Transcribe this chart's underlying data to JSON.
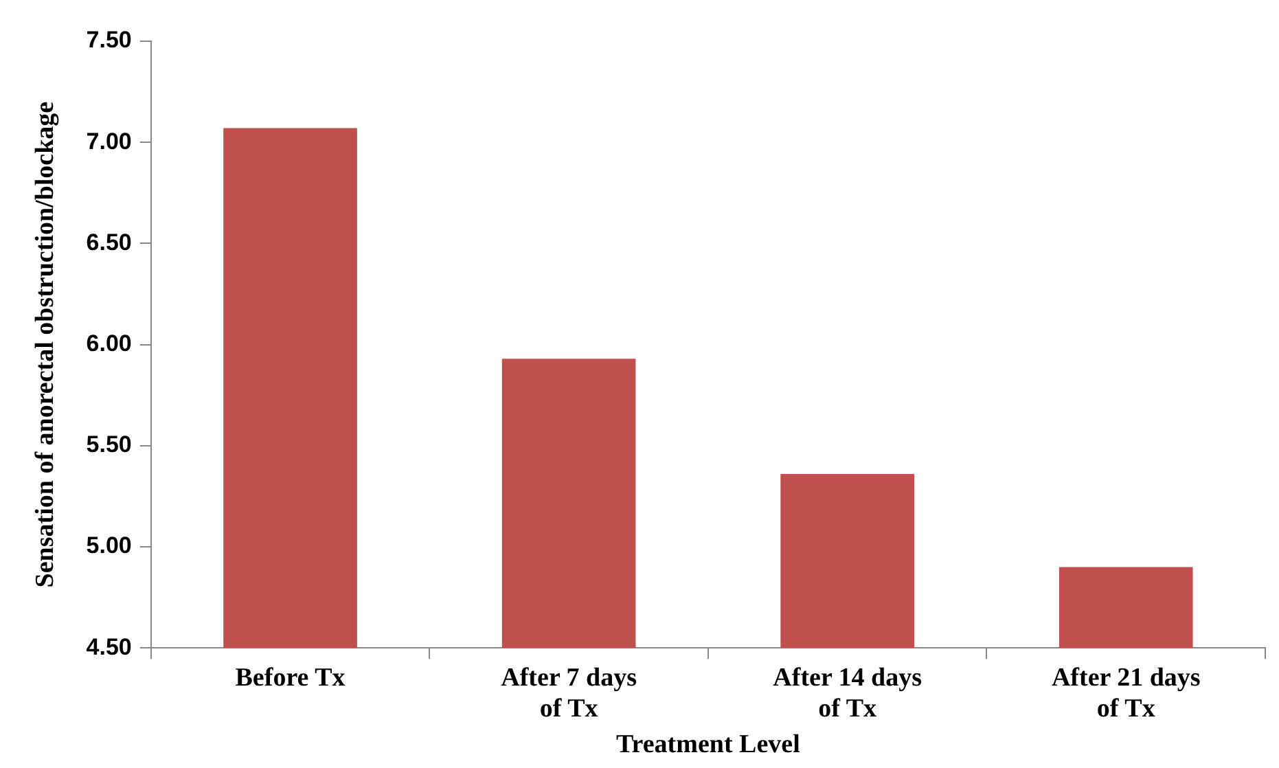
{
  "chart_data": {
    "type": "bar",
    "xlabel": "Treatment Level",
    "ylabel": "Sensation of anorectal obstruction/blockage",
    "categories": [
      "Before Tx",
      "After 7 days of Tx",
      "After 14 days of Tx",
      "After 21 days of Tx"
    ],
    "values": [
      7.07,
      5.93,
      5.36,
      4.9
    ],
    "color": "#c0504d",
    "ylim": [
      4.5,
      7.5
    ],
    "yticks": [
      {
        "value": 4.5,
        "label": "4.50"
      },
      {
        "value": 5,
        "label": "5.00"
      },
      {
        "value": 5.5,
        "label": "5.50"
      },
      {
        "value": 6,
        "label": "6.00"
      },
      {
        "value": 6.5,
        "label": "6.50"
      },
      {
        "value": 7,
        "label": "7.00"
      },
      {
        "value": 7.5,
        "label": "7.50"
      }
    ],
    "grid": false,
    "legend": false
  }
}
